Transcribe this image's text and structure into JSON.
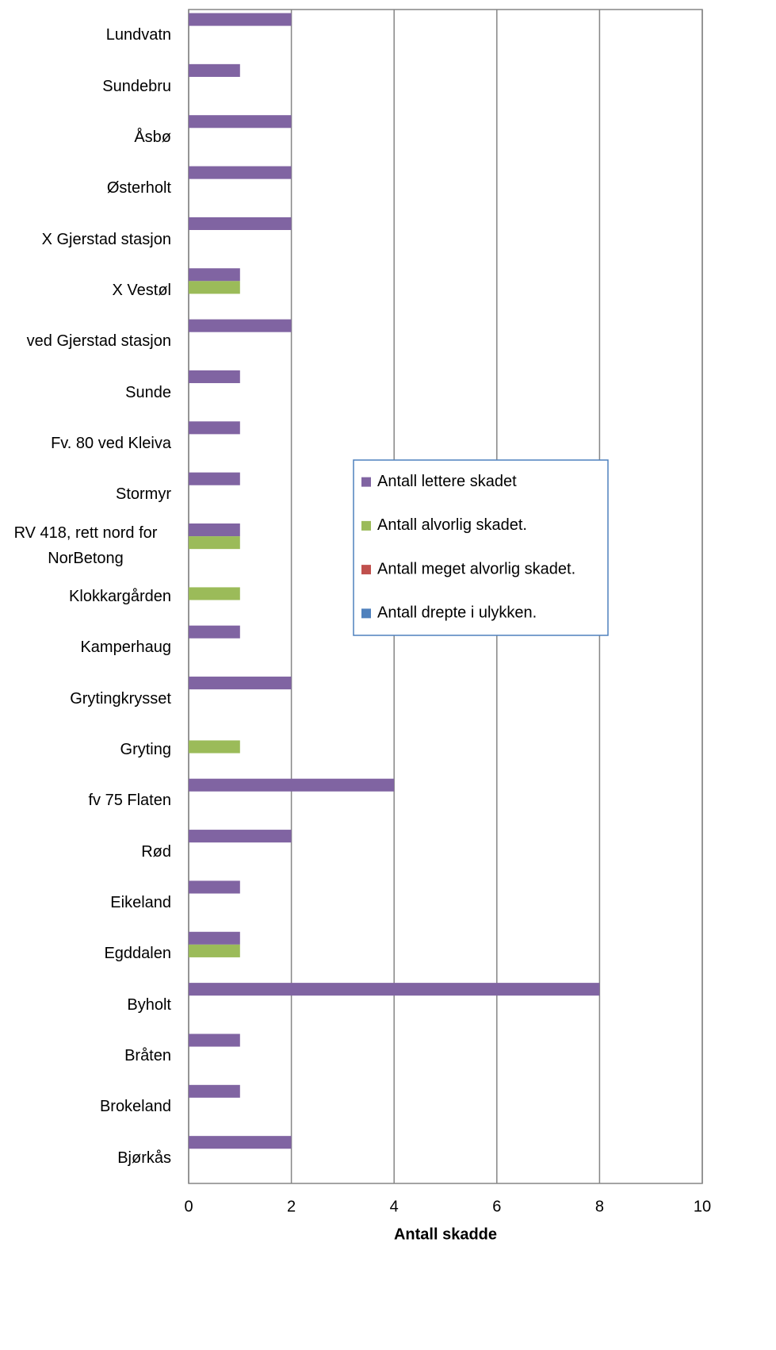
{
  "chart_data": {
    "type": "barh",
    "x_label": "Antall skadde",
    "categories": [
      "Lundvatn",
      "Sundebru",
      "Åsbø",
      "Østerholt",
      "X Gjerstad stasjon",
      "X Vestøl",
      "ved Gjerstad stasjon",
      "Sunde",
      "Fv. 80 ved Kleiva",
      "Stormyr",
      "RV 418, rett nord for NorBetong",
      "Klokkargården",
      "Kamperhaug",
      "Grytingkrysset",
      "Gryting",
      "fv 75 Flaten",
      "Rød",
      "Eikeland",
      "Egddalen",
      "Byholt",
      "Bråten",
      "Brokeland",
      "Bjørkås"
    ],
    "series": [
      {
        "name": "Antall lettere skadet",
        "color": "#8064a2",
        "values": [
          2,
          1,
          2,
          2,
          2,
          1,
          2,
          1,
          1,
          1,
          1,
          0,
          1,
          2,
          0,
          4,
          2,
          1,
          1,
          8,
          1,
          1,
          2
        ]
      },
      {
        "name": "Antall alvorlig skadet.",
        "color": "#9bbb59",
        "values": [
          0,
          0,
          0,
          0,
          0,
          1,
          0,
          0,
          0,
          0,
          1,
          1,
          0,
          0,
          1,
          0,
          0,
          0,
          1,
          0,
          0,
          0,
          0
        ]
      },
      {
        "name": "Antall meget alvorlig skadet.",
        "color": "#c0504d",
        "values": [
          0,
          0,
          0,
          0,
          0,
          0,
          0,
          0,
          0,
          0,
          0,
          0,
          0,
          0,
          0,
          0,
          0,
          0,
          0,
          0,
          0,
          0,
          0
        ]
      },
      {
        "name": "Antall drepte i ulykken.",
        "color": "#4f81bd",
        "values": [
          0,
          0,
          0,
          0,
          0,
          0,
          0,
          0,
          0,
          0,
          0,
          0,
          0,
          0,
          0,
          0,
          0,
          0,
          0,
          0,
          0,
          0,
          0
        ]
      }
    ],
    "xlim": [
      0,
      10
    ],
    "xticks": [
      0,
      2,
      4,
      6,
      8,
      10
    ],
    "grid": true,
    "legend_position": "right"
  }
}
